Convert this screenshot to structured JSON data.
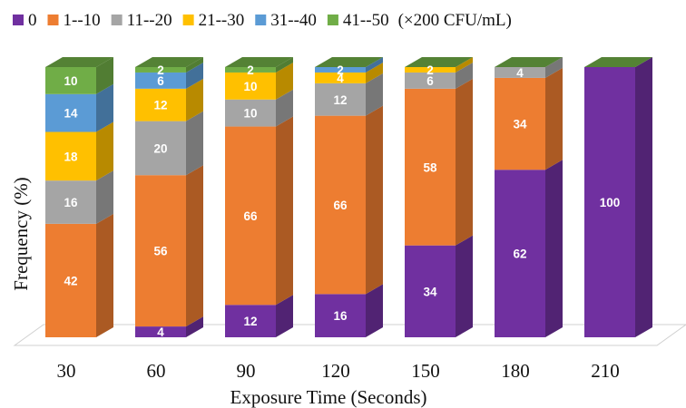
{
  "chart_data": {
    "type": "bar",
    "stacked": true,
    "style": "3d-stacked-column",
    "categories": [
      "30",
      "60",
      "90",
      "120",
      "150",
      "180",
      "210"
    ],
    "series": [
      {
        "name": "0",
        "color": "#7030A0",
        "values": [
          0,
          4,
          12,
          16,
          34,
          62,
          100
        ]
      },
      {
        "name": "1--10",
        "color": "#ED7D31",
        "values": [
          42,
          56,
          66,
          66,
          58,
          34,
          0
        ]
      },
      {
        "name": "11--20",
        "color": "#A5A5A5",
        "values": [
          16,
          20,
          10,
          12,
          6,
          4,
          0
        ]
      },
      {
        "name": "21--30",
        "color": "#FFC000",
        "values": [
          18,
          12,
          10,
          4,
          2,
          0,
          0
        ]
      },
      {
        "name": "31--40",
        "color": "#5B9BD5",
        "values": [
          14,
          6,
          0,
          2,
          0,
          0,
          0
        ]
      },
      {
        "name": "41--50",
        "color": "#70AD47",
        "values": [
          10,
          2,
          2,
          0,
          0,
          0,
          0
        ]
      }
    ],
    "unit_note": "(×200 CFU/mL)",
    "xlabel": "Exposure Time (Seconds)",
    "ylabel": "Frequency (%)",
    "ylim": [
      0,
      100
    ],
    "legend_position": "top",
    "grid": false
  }
}
